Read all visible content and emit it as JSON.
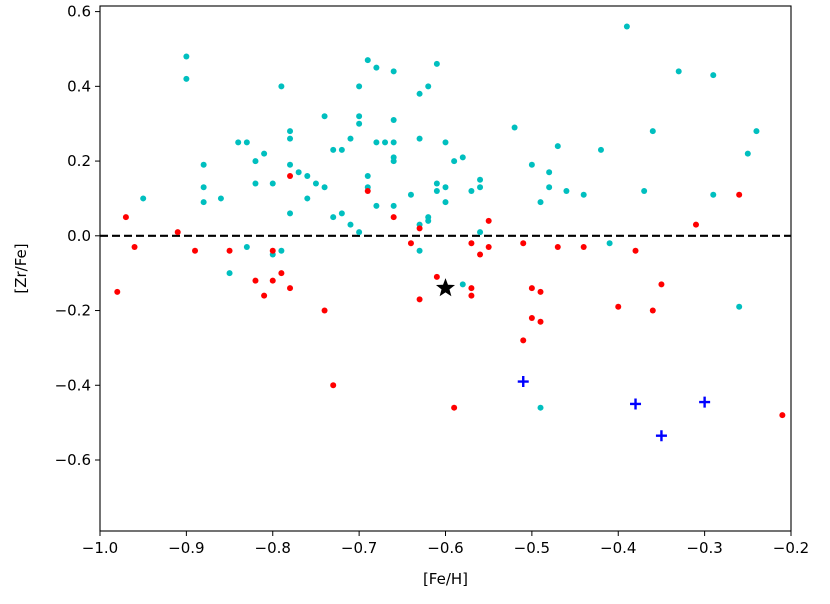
{
  "chart_data": {
    "type": "scatter",
    "title": "",
    "xlabel": "[Fe/H]",
    "ylabel": "[Zr/Fe]",
    "xlim": [
      -1.0,
      -0.2
    ],
    "ylim": [
      -0.79,
      0.615
    ],
    "xticks": [
      -1.0,
      -0.9,
      -0.8,
      -0.7,
      -0.6,
      -0.5,
      -0.4,
      -0.3,
      -0.2
    ],
    "xtick_labels": [
      "−1.0",
      "−0.9",
      "−0.8",
      "−0.7",
      "−0.6",
      "−0.5",
      "−0.4",
      "−0.3",
      "−0.2"
    ],
    "yticks": [
      -0.6,
      -0.4,
      -0.2,
      0.0,
      0.2,
      0.4,
      0.6
    ],
    "ytick_labels": [
      "−0.6",
      "−0.4",
      "−0.2",
      "0.0",
      "0.2",
      "0.4",
      "0.6"
    ],
    "grid": false,
    "reference_line": {
      "y": 0.0,
      "style": "dashed",
      "color": "#000000"
    },
    "series": [
      {
        "marker": "dot",
        "color": "#00bfbf",
        "points": [
          [
            -0.95,
            0.1
          ],
          [
            -0.9,
            0.48
          ],
          [
            -0.9,
            0.42
          ],
          [
            -0.88,
            0.19
          ],
          [
            -0.88,
            0.13
          ],
          [
            -0.88,
            0.09
          ],
          [
            -0.86,
            0.1
          ],
          [
            -0.85,
            -0.1
          ],
          [
            -0.84,
            0.25
          ],
          [
            -0.83,
            0.25
          ],
          [
            -0.83,
            -0.03
          ],
          [
            -0.82,
            0.2
          ],
          [
            -0.82,
            0.14
          ],
          [
            -0.81,
            0.22
          ],
          [
            -0.8,
            0.14
          ],
          [
            -0.8,
            -0.05
          ],
          [
            -0.79,
            0.4
          ],
          [
            -0.79,
            -0.04
          ],
          [
            -0.78,
            0.28
          ],
          [
            -0.78,
            0.26
          ],
          [
            -0.78,
            0.19
          ],
          [
            -0.78,
            0.06
          ],
          [
            -0.77,
            0.17
          ],
          [
            -0.76,
            0.16
          ],
          [
            -0.76,
            0.1
          ],
          [
            -0.75,
            0.14
          ],
          [
            -0.74,
            0.32
          ],
          [
            -0.74,
            0.13
          ],
          [
            -0.73,
            0.23
          ],
          [
            -0.73,
            0.05
          ],
          [
            -0.72,
            0.23
          ],
          [
            -0.72,
            0.06
          ],
          [
            -0.71,
            0.26
          ],
          [
            -0.71,
            0.03
          ],
          [
            -0.7,
            0.4
          ],
          [
            -0.7,
            0.32
          ],
          [
            -0.7,
            0.3
          ],
          [
            -0.7,
            0.01
          ],
          [
            -0.69,
            0.47
          ],
          [
            -0.69,
            0.16
          ],
          [
            -0.69,
            0.13
          ],
          [
            -0.68,
            0.45
          ],
          [
            -0.68,
            0.25
          ],
          [
            -0.68,
            0.08
          ],
          [
            -0.67,
            0.25
          ],
          [
            -0.66,
            0.44
          ],
          [
            -0.66,
            0.31
          ],
          [
            -0.66,
            0.25
          ],
          [
            -0.66,
            0.21
          ],
          [
            -0.66,
            0.2
          ],
          [
            -0.66,
            0.08
          ],
          [
            -0.64,
            0.11
          ],
          [
            -0.63,
            0.38
          ],
          [
            -0.63,
            0.26
          ],
          [
            -0.63,
            0.03
          ],
          [
            -0.63,
            -0.04
          ],
          [
            -0.62,
            0.4
          ],
          [
            -0.62,
            0.05
          ],
          [
            -0.62,
            0.04
          ],
          [
            -0.61,
            0.46
          ],
          [
            -0.61,
            0.14
          ],
          [
            -0.61,
            0.12
          ],
          [
            -0.6,
            0.25
          ],
          [
            -0.6,
            0.13
          ],
          [
            -0.6,
            0.09
          ],
          [
            -0.59,
            0.2
          ],
          [
            -0.58,
            0.21
          ],
          [
            -0.58,
            -0.13
          ],
          [
            -0.57,
            0.12
          ],
          [
            -0.56,
            0.15
          ],
          [
            -0.56,
            0.13
          ],
          [
            -0.56,
            0.01
          ],
          [
            -0.52,
            0.29
          ],
          [
            -0.5,
            0.19
          ],
          [
            -0.49,
            0.09
          ],
          [
            -0.49,
            -0.46
          ],
          [
            -0.48,
            0.17
          ],
          [
            -0.48,
            0.13
          ],
          [
            -0.47,
            0.24
          ],
          [
            -0.46,
            0.12
          ],
          [
            -0.44,
            0.11
          ],
          [
            -0.42,
            0.23
          ],
          [
            -0.41,
            -0.02
          ],
          [
            -0.39,
            0.56
          ],
          [
            -0.37,
            0.12
          ],
          [
            -0.36,
            0.28
          ],
          [
            -0.33,
            0.44
          ],
          [
            -0.29,
            0.43
          ],
          [
            -0.29,
            0.11
          ],
          [
            -0.26,
            -0.19
          ],
          [
            -0.25,
            0.22
          ],
          [
            -0.24,
            0.28
          ]
        ]
      },
      {
        "marker": "dot",
        "color": "#ff0000",
        "points": [
          [
            -0.98,
            -0.15
          ],
          [
            -0.97,
            0.05
          ],
          [
            -0.96,
            -0.03
          ],
          [
            -0.91,
            0.01
          ],
          [
            -0.89,
            -0.04
          ],
          [
            -0.85,
            -0.04
          ],
          [
            -0.82,
            -0.12
          ],
          [
            -0.81,
            -0.16
          ],
          [
            -0.8,
            -0.12
          ],
          [
            -0.8,
            -0.04
          ],
          [
            -0.79,
            -0.1
          ],
          [
            -0.78,
            0.16
          ],
          [
            -0.78,
            -0.14
          ],
          [
            -0.74,
            -0.2
          ],
          [
            -0.73,
            -0.4
          ],
          [
            -0.69,
            0.12
          ],
          [
            -0.66,
            0.05
          ],
          [
            -0.64,
            -0.02
          ],
          [
            -0.63,
            0.02
          ],
          [
            -0.63,
            -0.17
          ],
          [
            -0.61,
            -0.11
          ],
          [
            -0.59,
            -0.46
          ],
          [
            -0.57,
            -0.02
          ],
          [
            -0.57,
            -0.14
          ],
          [
            -0.57,
            -0.16
          ],
          [
            -0.56,
            -0.05
          ],
          [
            -0.55,
            0.04
          ],
          [
            -0.55,
            -0.03
          ],
          [
            -0.51,
            -0.02
          ],
          [
            -0.51,
            -0.28
          ],
          [
            -0.5,
            -0.14
          ],
          [
            -0.5,
            -0.22
          ],
          [
            -0.49,
            -0.15
          ],
          [
            -0.49,
            -0.23
          ],
          [
            -0.47,
            -0.03
          ],
          [
            -0.44,
            -0.03
          ],
          [
            -0.4,
            -0.19
          ],
          [
            -0.38,
            -0.04
          ],
          [
            -0.36,
            -0.2
          ],
          [
            -0.35,
            -0.13
          ],
          [
            -0.31,
            0.03
          ],
          [
            -0.26,
            0.11
          ],
          [
            -0.21,
            -0.48
          ]
        ]
      },
      {
        "marker": "plus",
        "color": "#0000ff",
        "points": [
          [
            -0.51,
            -0.39
          ],
          [
            -0.38,
            -0.45
          ],
          [
            -0.35,
            -0.535
          ],
          [
            -0.3,
            -0.445
          ]
        ]
      },
      {
        "marker": "star",
        "color": "#000000",
        "points": [
          [
            -0.6,
            -0.14
          ]
        ]
      }
    ]
  }
}
